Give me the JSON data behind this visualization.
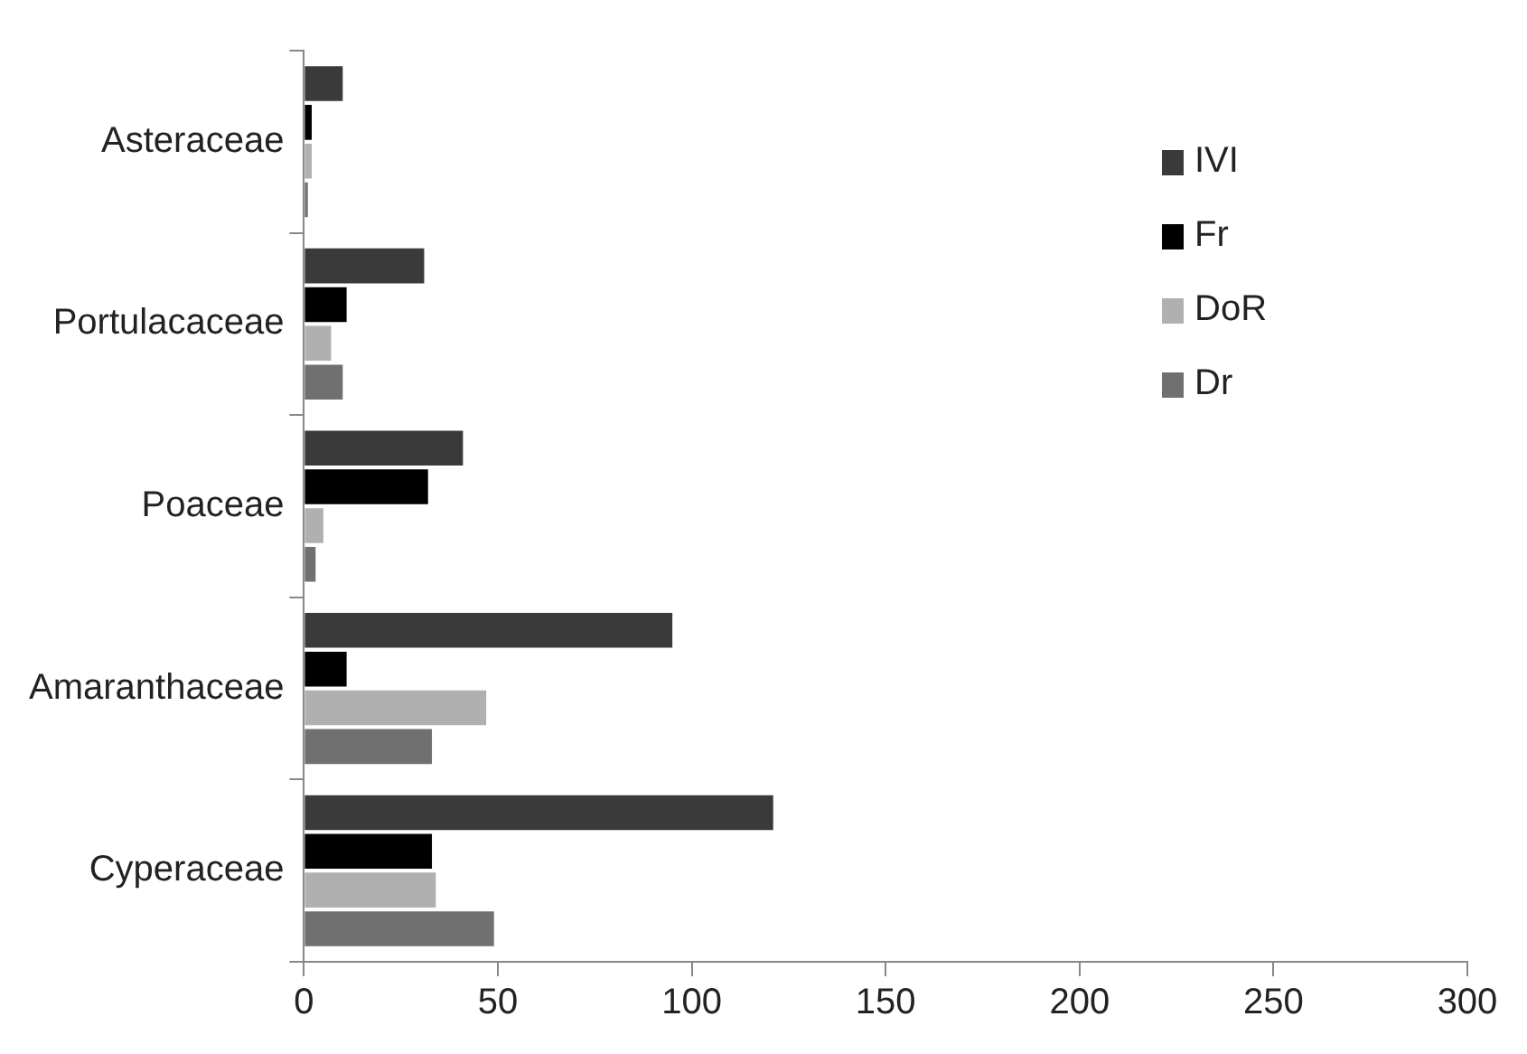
{
  "chart_data": {
    "type": "bar",
    "orientation": "horizontal",
    "categories": [
      "Asteraceae",
      "Portulacaceae",
      "Poaceae",
      "Amaranthaceae",
      "Cyperaceae"
    ],
    "series": [
      {
        "name": "IVI",
        "color": "#3a3a3a",
        "values": [
          10,
          31,
          41,
          95,
          121
        ]
      },
      {
        "name": "Fr",
        "color": "#000000",
        "values": [
          2,
          11,
          32,
          11,
          33
        ]
      },
      {
        "name": "DoR",
        "color": "#b0b0b0",
        "values": [
          2,
          7,
          5,
          47,
          34
        ]
      },
      {
        "name": "Dr",
        "color": "#707070",
        "values": [
          1,
          10,
          3,
          33,
          49
        ]
      }
    ],
    "xlim": [
      0,
      300
    ],
    "xticks": [
      0,
      50,
      100,
      150,
      200,
      250,
      300
    ],
    "grid": false,
    "legend": "top right"
  }
}
